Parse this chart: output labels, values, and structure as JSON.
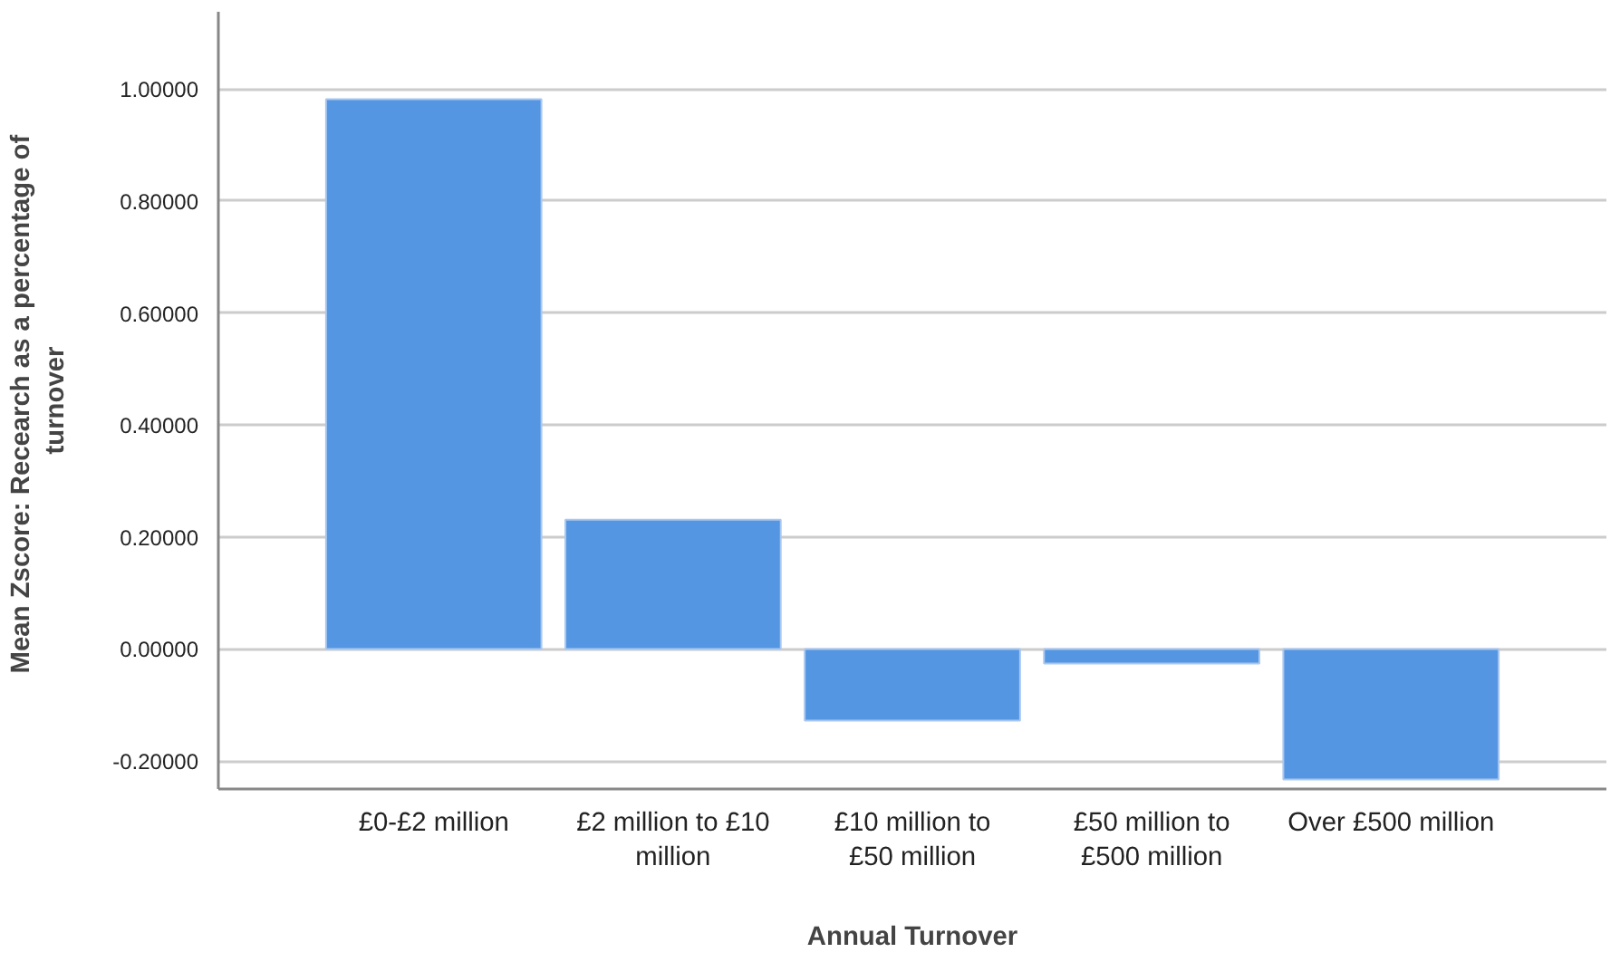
{
  "chart_data": {
    "type": "bar",
    "xlabel": "Annual Turnover",
    "ylabel": "Mean Zscore:  Recearch as a percentage of turnover",
    "categories": [
      "£0-£2 million",
      "£2 million to £10\nmillion",
      "£10 million to\n£50 million",
      "£50 million to\n£500 million",
      "Over £500 million"
    ],
    "values": [
      0.982,
      0.231,
      -0.128,
      -0.026,
      -0.233
    ],
    "color": "#5596e3",
    "ylim": [
      -0.25,
      1.138
    ],
    "yticks": [
      {
        "value": -0.2,
        "label": "-0.20000"
      },
      {
        "value": 0,
        "label": "0.00000"
      },
      {
        "value": 0.2,
        "label": "0.20000"
      },
      {
        "value": 0.4,
        "label": "0.40000"
      },
      {
        "value": 0.6,
        "label": "0.60000"
      },
      {
        "value": 0.8,
        "label": "0.80000"
      },
      {
        "value": 1.0,
        "label": "1.00000"
      }
    ],
    "grid": "y"
  }
}
